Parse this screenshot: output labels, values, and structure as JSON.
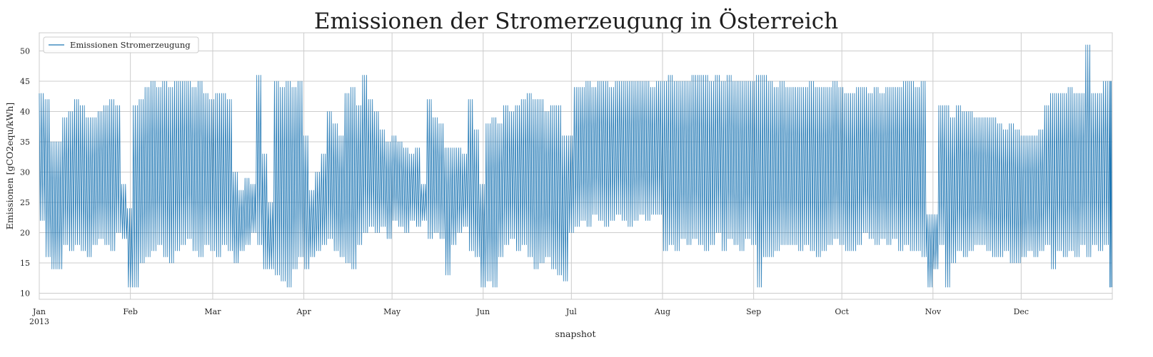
{
  "chart_data": {
    "type": "line",
    "title": "Emissionen der Stromerzeugung in Österreich",
    "xlabel": "snapshot",
    "ylabel": "Emissionen [gCO2equ/kWh]",
    "year_label": "2013",
    "xlim": [
      "2013-01-01",
      "2013-12-31"
    ],
    "ylim": [
      9,
      53
    ],
    "yticks": [
      10,
      15,
      20,
      25,
      30,
      35,
      40,
      45,
      50
    ],
    "xticks": [
      {
        "date": "2013-01-01",
        "label": "Jan"
      },
      {
        "date": "2013-02-01",
        "label": "Feb"
      },
      {
        "date": "2013-03-01",
        "label": "Mar"
      },
      {
        "date": "2013-04-01",
        "label": "Apr"
      },
      {
        "date": "2013-05-01",
        "label": "May"
      },
      {
        "date": "2013-06-01",
        "label": "Jun"
      },
      {
        "date": "2013-07-01",
        "label": "Jul"
      },
      {
        "date": "2013-08-01",
        "label": "Aug"
      },
      {
        "date": "2013-09-01",
        "label": "Sep"
      },
      {
        "date": "2013-10-01",
        "label": "Oct"
      },
      {
        "date": "2013-11-01",
        "label": "Nov"
      },
      {
        "date": "2013-12-01",
        "label": "Dec"
      }
    ],
    "grid": true,
    "legend_position": "top-left",
    "series": [
      {
        "name": "Emissionen Stromerzeugung",
        "color": "#1f77b4",
        "x": [
          "2013-01-01",
          "2013-01-03",
          "2013-01-05",
          "2013-01-07",
          "2013-01-09",
          "2013-01-11",
          "2013-01-13",
          "2013-01-15",
          "2013-01-17",
          "2013-01-19",
          "2013-01-21",
          "2013-01-23",
          "2013-01-25",
          "2013-01-27",
          "2013-01-29",
          "2013-01-31",
          "2013-02-02",
          "2013-02-04",
          "2013-02-06",
          "2013-02-08",
          "2013-02-10",
          "2013-02-12",
          "2013-02-14",
          "2013-02-16",
          "2013-02-18",
          "2013-02-20",
          "2013-02-22",
          "2013-02-24",
          "2013-02-26",
          "2013-02-28",
          "2013-03-02",
          "2013-03-04",
          "2013-03-06",
          "2013-03-08",
          "2013-03-10",
          "2013-03-12",
          "2013-03-14",
          "2013-03-16",
          "2013-03-18",
          "2013-03-20",
          "2013-03-22",
          "2013-03-24",
          "2013-03-26",
          "2013-03-28",
          "2013-03-30",
          "2013-04-01",
          "2013-04-03",
          "2013-04-05",
          "2013-04-07",
          "2013-04-09",
          "2013-04-11",
          "2013-04-13",
          "2013-04-15",
          "2013-04-17",
          "2013-04-19",
          "2013-04-21",
          "2013-04-23",
          "2013-04-25",
          "2013-04-27",
          "2013-04-29",
          "2013-05-01",
          "2013-05-03",
          "2013-05-05",
          "2013-05-07",
          "2013-05-09",
          "2013-05-11",
          "2013-05-13",
          "2013-05-15",
          "2013-05-17",
          "2013-05-19",
          "2013-05-21",
          "2013-05-23",
          "2013-05-25",
          "2013-05-27",
          "2013-05-29",
          "2013-05-31",
          "2013-06-02",
          "2013-06-04",
          "2013-06-06",
          "2013-06-08",
          "2013-06-10",
          "2013-06-12",
          "2013-06-14",
          "2013-06-16",
          "2013-06-18",
          "2013-06-20",
          "2013-06-22",
          "2013-06-24",
          "2013-06-26",
          "2013-06-28",
          "2013-06-30",
          "2013-07-02",
          "2013-07-04",
          "2013-07-06",
          "2013-07-08",
          "2013-07-10",
          "2013-07-12",
          "2013-07-14",
          "2013-07-16",
          "2013-07-18",
          "2013-07-20",
          "2013-07-22",
          "2013-07-24",
          "2013-07-26",
          "2013-07-28",
          "2013-07-30",
          "2013-08-01",
          "2013-08-03",
          "2013-08-05",
          "2013-08-07",
          "2013-08-09",
          "2013-08-11",
          "2013-08-13",
          "2013-08-15",
          "2013-08-17",
          "2013-08-19",
          "2013-08-21",
          "2013-08-23",
          "2013-08-25",
          "2013-08-27",
          "2013-08-29",
          "2013-08-31",
          "2013-09-02",
          "2013-09-04",
          "2013-09-06",
          "2013-09-08",
          "2013-09-10",
          "2013-09-12",
          "2013-09-14",
          "2013-09-16",
          "2013-09-18",
          "2013-09-20",
          "2013-09-22",
          "2013-09-24",
          "2013-09-26",
          "2013-09-28",
          "2013-09-30",
          "2013-10-02",
          "2013-10-04",
          "2013-10-06",
          "2013-10-08",
          "2013-10-10",
          "2013-10-12",
          "2013-10-14",
          "2013-10-16",
          "2013-10-18",
          "2013-10-20",
          "2013-10-22",
          "2013-10-24",
          "2013-10-26",
          "2013-10-28",
          "2013-10-30",
          "2013-11-01",
          "2013-11-03",
          "2013-11-05",
          "2013-11-07",
          "2013-11-09",
          "2013-11-11",
          "2013-11-13",
          "2013-11-15",
          "2013-11-17",
          "2013-11-19",
          "2013-11-21",
          "2013-11-23",
          "2013-11-25",
          "2013-11-27",
          "2013-11-29",
          "2013-12-01",
          "2013-12-03",
          "2013-12-05",
          "2013-12-07",
          "2013-12-09",
          "2013-12-11",
          "2013-12-13",
          "2013-12-15",
          "2013-12-17",
          "2013-12-19",
          "2013-12-21",
          "2013-12-23",
          "2013-12-25",
          "2013-12-27",
          "2013-12-29",
          "2013-12-31"
        ],
        "y_min": [
          22,
          16,
          14,
          14,
          18,
          17,
          18,
          17,
          16,
          18,
          19,
          18,
          17,
          20,
          19,
          11,
          11,
          15,
          16,
          17,
          18,
          16,
          15,
          17,
          18,
          19,
          17,
          16,
          18,
          17,
          16,
          18,
          17,
          15,
          17,
          18,
          20,
          18,
          14,
          14,
          13,
          12,
          11,
          14,
          16,
          14,
          16,
          17,
          18,
          19,
          17,
          16,
          15,
          14,
          18,
          20,
          21,
          20,
          21,
          19,
          22,
          21,
          20,
          22,
          21,
          22,
          19,
          20,
          19,
          13,
          18,
          20,
          21,
          17,
          16,
          11,
          12,
          11,
          16,
          18,
          19,
          17,
          18,
          16,
          14,
          15,
          16,
          14,
          13,
          12,
          20,
          21,
          22,
          21,
          23,
          22,
          21,
          22,
          23,
          22,
          21,
          22,
          23,
          22,
          23,
          23,
          17,
          18,
          17,
          19,
          18,
          19,
          18,
          17,
          18,
          20,
          17,
          19,
          18,
          17,
          19,
          18,
          11,
          16,
          16,
          17,
          18,
          18,
          18,
          17,
          18,
          17,
          16,
          17,
          18,
          19,
          18,
          17,
          17,
          18,
          20,
          19,
          18,
          19,
          18,
          19,
          17,
          18,
          17,
          17,
          16,
          11,
          14,
          18,
          11,
          15,
          17,
          16,
          17,
          18,
          18,
          17,
          16,
          16,
          17,
          15,
          15,
          16,
          17,
          16,
          17,
          18,
          14,
          17,
          16,
          17,
          16,
          18,
          16,
          18,
          17,
          18,
          11,
          11,
          14,
          15,
          17,
          17
        ],
        "y_max": [
          43,
          42,
          35,
          35,
          39,
          40,
          42,
          41,
          39,
          39,
          40,
          41,
          42,
          41,
          28,
          24,
          41,
          42,
          44,
          45,
          44,
          45,
          44,
          45,
          45,
          45,
          44,
          45,
          43,
          42,
          43,
          43,
          42,
          30,
          27,
          29,
          28,
          46,
          33,
          25,
          45,
          44,
          45,
          44,
          45,
          36,
          27,
          30,
          33,
          40,
          38,
          36,
          43,
          44,
          41,
          46,
          42,
          40,
          37,
          35,
          36,
          35,
          34,
          33,
          34,
          28,
          42,
          39,
          38,
          34,
          34,
          34,
          33,
          42,
          37,
          28,
          38,
          39,
          38,
          41,
          40,
          41,
          42,
          43,
          42,
          42,
          40,
          41,
          41,
          36,
          36,
          44,
          44,
          45,
          44,
          45,
          45,
          44,
          45,
          45,
          45,
          45,
          45,
          45,
          44,
          45,
          45,
          46,
          45,
          45,
          45,
          46,
          46,
          46,
          45,
          46,
          45,
          46,
          45,
          45,
          45,
          45,
          46,
          46,
          45,
          44,
          45,
          44,
          44,
          44,
          44,
          45,
          44,
          44,
          44,
          45,
          44,
          43,
          43,
          44,
          44,
          43,
          44,
          43,
          44,
          44,
          44,
          45,
          45,
          44,
          45,
          23,
          23,
          41,
          41,
          39,
          41,
          40,
          40,
          39,
          39,
          39,
          39,
          38,
          37,
          38,
          37,
          36,
          36,
          36,
          37,
          41,
          43,
          43,
          43,
          44,
          43,
          43,
          51,
          43,
          43,
          45,
          45,
          44,
          41,
          41,
          40,
          38
        ]
      }
    ]
  }
}
